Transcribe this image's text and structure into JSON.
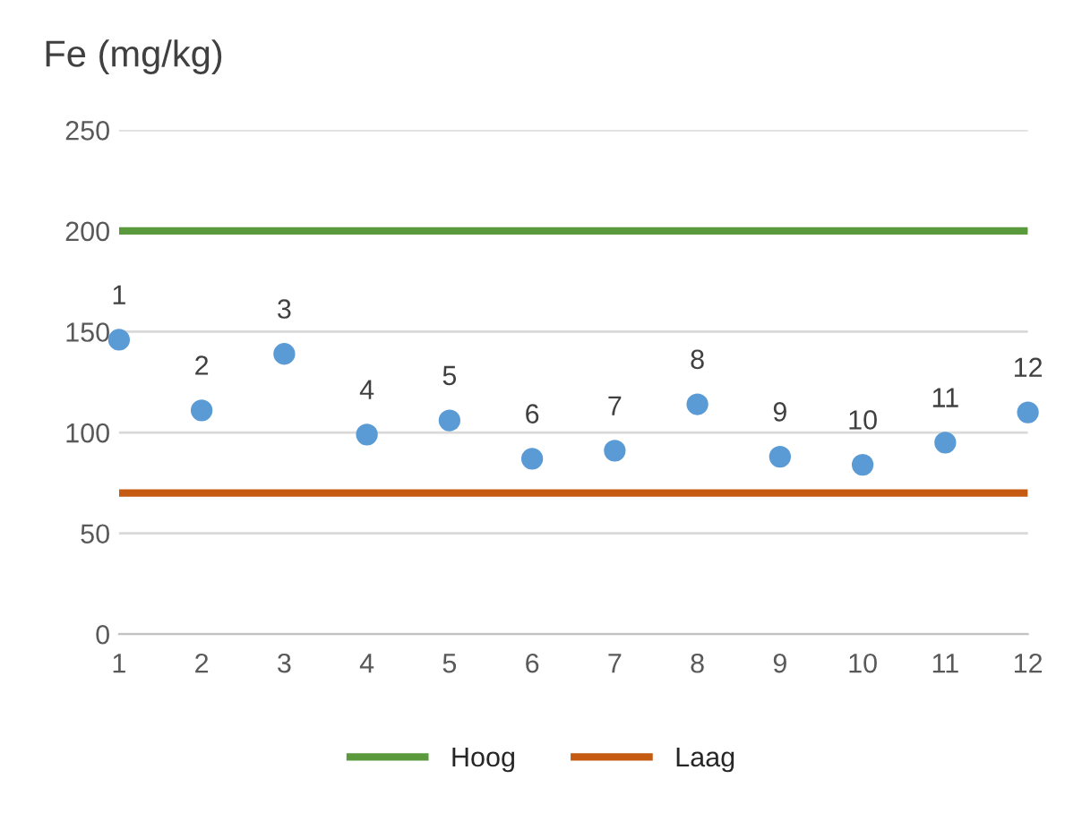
{
  "chart_data": {
    "type": "scatter",
    "title": "Fe (mg/kg)",
    "x": [
      1,
      2,
      3,
      4,
      5,
      6,
      7,
      8,
      9,
      10,
      11,
      12
    ],
    "series": [
      {
        "color": "#5b9bd5",
        "marker": "circle",
        "values": [
          146,
          111,
          139,
          99,
          106,
          87,
          91,
          114,
          88,
          84,
          95,
          110
        ]
      },
      {
        "type": "line",
        "name": "Hoog",
        "color": "#5a9a3c",
        "values": [
          200,
          200,
          200,
          200,
          200,
          200,
          200,
          200,
          200,
          200,
          200,
          200
        ]
      },
      {
        "type": "line",
        "name": "Laag",
        "color": "#c55a11",
        "values": [
          70,
          70,
          70,
          70,
          70,
          70,
          70,
          70,
          70,
          70,
          70,
          70
        ]
      }
    ],
    "xlim": [
      1,
      12
    ],
    "xticks": [
      1,
      2,
      3,
      4,
      5,
      6,
      7,
      8,
      9,
      10,
      11,
      12
    ],
    "ylim": [
      0,
      250
    ],
    "yticks": [
      0,
      50,
      100,
      150,
      200,
      250
    ],
    "annotations": [
      {
        "text": "1",
        "x": 1,
        "y": 146
      },
      {
        "text": "2",
        "x": 2,
        "y": 111
      },
      {
        "text": "3",
        "x": 3,
        "y": 139
      },
      {
        "text": "4",
        "x": 4,
        "y": 99
      },
      {
        "text": "5",
        "x": 5,
        "y": 106
      },
      {
        "text": "6",
        "x": 6,
        "y": 87
      },
      {
        "text": "7",
        "x": 7,
        "y": 91
      },
      {
        "text": "8",
        "x": 8,
        "y": 114
      },
      {
        "text": "9",
        "x": 9,
        "y": 88
      },
      {
        "text": "10",
        "x": 10,
        "y": 84
      },
      {
        "text": "11",
        "x": 11,
        "y": 95
      },
      {
        "text": "12",
        "x": 12,
        "y": 110
      }
    ],
    "grid": "y",
    "legend": "bottom"
  }
}
